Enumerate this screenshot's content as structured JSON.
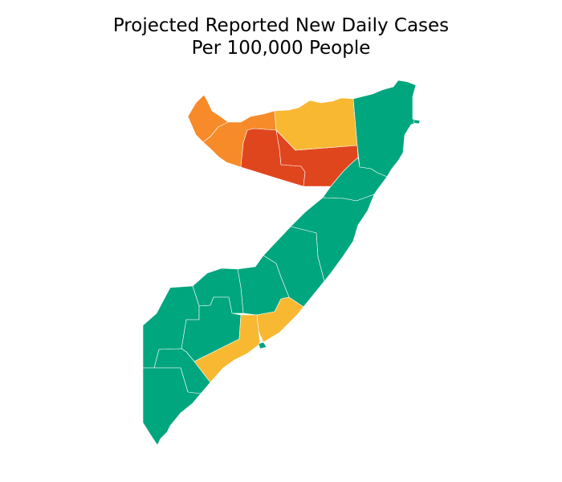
{
  "title": {
    "line1": "Projected Reported New Daily Cases",
    "line2": "Per 100,000 People"
  },
  "colors": {
    "green": "#00a67e",
    "yellow": "#f8b832",
    "orange": "#f78b2a",
    "red": "#e0461e"
  },
  "regions": [
    {
      "id": "awdal",
      "category": "orange"
    },
    {
      "id": "woqooyi-galbeed",
      "category": "orange"
    },
    {
      "id": "togdheer",
      "category": "red"
    },
    {
      "id": "sool",
      "category": "red"
    },
    {
      "id": "sanaag",
      "category": "yellow"
    },
    {
      "id": "bari",
      "category": "green"
    },
    {
      "id": "nugaal",
      "category": "green"
    },
    {
      "id": "mudug",
      "category": "green"
    },
    {
      "id": "galguduud",
      "category": "green"
    },
    {
      "id": "hiraan",
      "category": "green"
    },
    {
      "id": "bakool",
      "category": "green"
    },
    {
      "id": "gedo",
      "category": "green"
    },
    {
      "id": "bay",
      "category": "green"
    },
    {
      "id": "middle-juba",
      "category": "green"
    },
    {
      "id": "lower-juba",
      "category": "green"
    },
    {
      "id": "middle-shabelle",
      "category": "yellow"
    },
    {
      "id": "lower-shabelle",
      "category": "yellow"
    },
    {
      "id": "banaadir",
      "category": "green"
    }
  ]
}
